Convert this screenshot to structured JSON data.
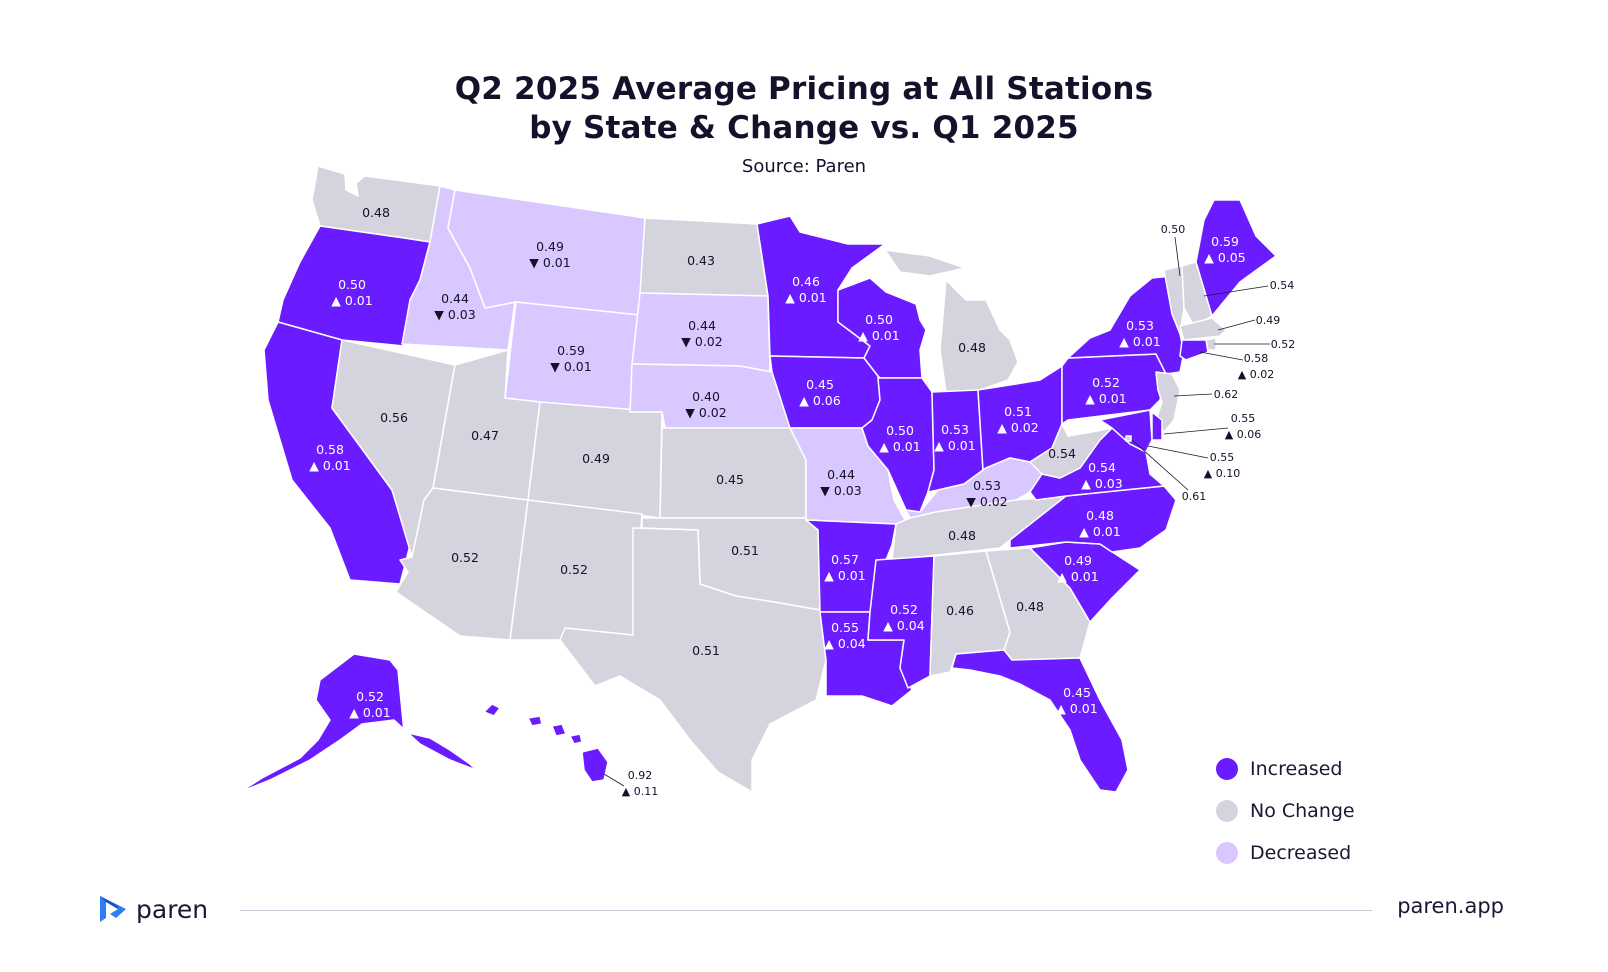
{
  "title": {
    "line1": "Q2 2025 Average Pricing at All Stations",
    "line2": "by State & Change vs. Q1 2025",
    "source": "Source: Paren"
  },
  "colors": {
    "increased": "#6B1BFF",
    "no_change": "#D4D3DE",
    "decreased": "#D9C8FF",
    "text_dark": "#14112a",
    "text_light": "#ffffff"
  },
  "legend": [
    {
      "key": "increased",
      "label": "Increased"
    },
    {
      "key": "no_change",
      "label": "No Change"
    },
    {
      "key": "decreased",
      "label": "Decreased"
    }
  ],
  "states": [
    {
      "id": "WA",
      "status": "no_change",
      "price": "0.48",
      "change": ""
    },
    {
      "id": "OR",
      "status": "increased",
      "price": "0.50",
      "change": "▲ 0.01"
    },
    {
      "id": "CA",
      "status": "increased",
      "price": "0.58",
      "change": "▲ 0.01"
    },
    {
      "id": "NV",
      "status": "no_change",
      "price": "0.56",
      "change": ""
    },
    {
      "id": "ID",
      "status": "decreased",
      "price": "0.44",
      "change": "▼ 0.03"
    },
    {
      "id": "MT",
      "status": "decreased",
      "price": "0.49",
      "change": "▼ 0.01"
    },
    {
      "id": "WY",
      "status": "decreased",
      "price": "0.59",
      "change": "▼ 0.01"
    },
    {
      "id": "UT",
      "status": "no_change",
      "price": "0.47",
      "change": ""
    },
    {
      "id": "AZ",
      "status": "no_change",
      "price": "0.52",
      "change": ""
    },
    {
      "id": "CO",
      "status": "no_change",
      "price": "0.49",
      "change": ""
    },
    {
      "id": "NM",
      "status": "no_change",
      "price": "0.52",
      "change": ""
    },
    {
      "id": "ND",
      "status": "no_change",
      "price": "0.43",
      "change": ""
    },
    {
      "id": "SD",
      "status": "decreased",
      "price": "0.44",
      "change": "▼ 0.02"
    },
    {
      "id": "NE",
      "status": "decreased",
      "price": "0.40",
      "change": "▼ 0.02"
    },
    {
      "id": "KS",
      "status": "no_change",
      "price": "0.45",
      "change": ""
    },
    {
      "id": "OK",
      "status": "no_change",
      "price": "0.51",
      "change": ""
    },
    {
      "id": "TX",
      "status": "no_change",
      "price": "0.51",
      "change": ""
    },
    {
      "id": "MN",
      "status": "increased",
      "price": "0.46",
      "change": "▲ 0.01"
    },
    {
      "id": "IA",
      "status": "increased",
      "price": "0.45",
      "change": "▲ 0.06"
    },
    {
      "id": "MO",
      "status": "decreased",
      "price": "0.44",
      "change": "▼ 0.03"
    },
    {
      "id": "AR",
      "status": "increased",
      "price": "0.57",
      "change": "▲ 0.01"
    },
    {
      "id": "LA",
      "status": "increased",
      "price": "0.55",
      "change": "▲ 0.04"
    },
    {
      "id": "WI",
      "status": "increased",
      "price": "0.50",
      "change": "▲ 0.01"
    },
    {
      "id": "IL",
      "status": "increased",
      "price": "0.50",
      "change": "▲ 0.01"
    },
    {
      "id": "MI",
      "status": "no_change",
      "price": "0.48",
      "change": ""
    },
    {
      "id": "IN",
      "status": "increased",
      "price": "0.53",
      "change": "▲ 0.01"
    },
    {
      "id": "OH",
      "status": "increased",
      "price": "0.51",
      "change": "▲ 0.02"
    },
    {
      "id": "KY",
      "status": "decreased",
      "price": "0.53",
      "change": "▼ 0.02"
    },
    {
      "id": "TN",
      "status": "no_change",
      "price": "0.48",
      "change": ""
    },
    {
      "id": "MS",
      "status": "increased",
      "price": "0.52",
      "change": "▲ 0.04"
    },
    {
      "id": "AL",
      "status": "no_change",
      "price": "0.46",
      "change": ""
    },
    {
      "id": "GA",
      "status": "no_change",
      "price": "0.48",
      "change": ""
    },
    {
      "id": "FL",
      "status": "increased",
      "price": "0.45",
      "change": "▲ 0.01"
    },
    {
      "id": "SC",
      "status": "increased",
      "price": "0.49",
      "change": "▲ 0.01"
    },
    {
      "id": "NC",
      "status": "increased",
      "price": "0.48",
      "change": "▲ 0.01"
    },
    {
      "id": "VA",
      "status": "increased",
      "price": "0.54",
      "change": "▲ 0.03"
    },
    {
      "id": "WV",
      "status": "no_change",
      "price": "0.54",
      "change": ""
    },
    {
      "id": "PA",
      "status": "increased",
      "price": "0.52",
      "change": "▲ 0.01"
    },
    {
      "id": "NY",
      "status": "increased",
      "price": "0.53",
      "change": "▲ 0.01"
    },
    {
      "id": "VT",
      "status": "no_change",
      "price": "0.50",
      "change": ""
    },
    {
      "id": "NH",
      "status": "no_change",
      "price": "0.54",
      "change": ""
    },
    {
      "id": "ME",
      "status": "increased",
      "price": "0.59",
      "change": "▲ 0.05"
    },
    {
      "id": "MA",
      "status": "no_change",
      "price": "0.49",
      "change": ""
    },
    {
      "id": "RI",
      "status": "no_change",
      "price": "0.52",
      "change": ""
    },
    {
      "id": "CT",
      "status": "increased",
      "price": "0.58",
      "change": "▲ 0.02"
    },
    {
      "id": "NJ",
      "status": "no_change",
      "price": "0.62",
      "change": ""
    },
    {
      "id": "DE",
      "status": "increased",
      "price": "0.55",
      "change": "▲ 0.06"
    },
    {
      "id": "MD",
      "status": "increased",
      "price": "0.55",
      "change": "▲ 0.10"
    },
    {
      "id": "DC",
      "status": "no_change",
      "price": "0.61",
      "change": ""
    },
    {
      "id": "AK",
      "status": "increased",
      "price": "0.52",
      "change": "▲ 0.01"
    },
    {
      "id": "HI",
      "status": "increased",
      "price": "0.92",
      "change": "▲ 0.11"
    }
  ],
  "footer": {
    "brand": "paren",
    "site": "paren.app"
  }
}
